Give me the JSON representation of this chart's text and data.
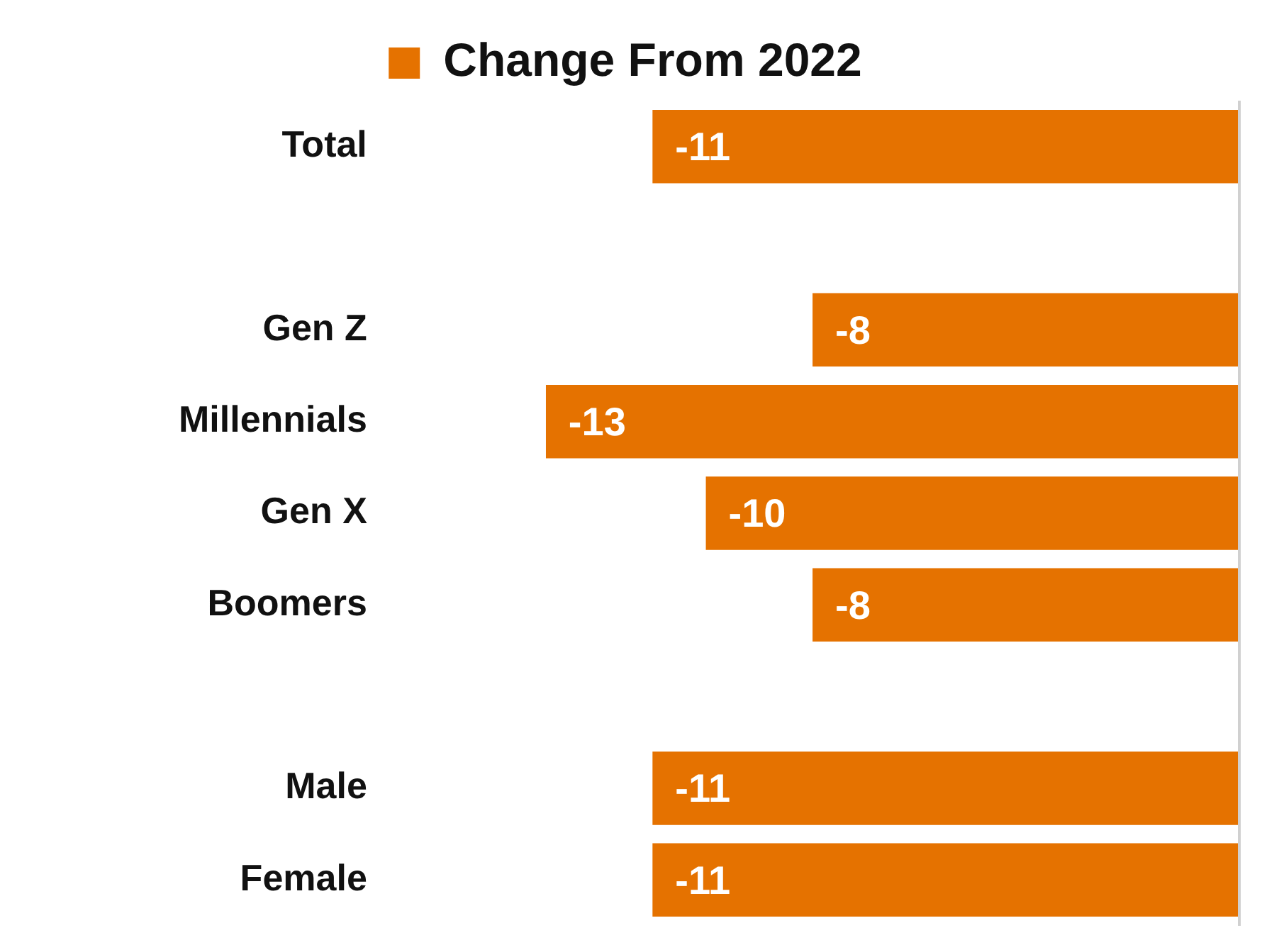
{
  "chart_data": {
    "type": "bar",
    "orientation": "horizontal",
    "xlim": [
      -13,
      0
    ],
    "tick_labels": "y",
    "data_labels": true,
    "legend": "top",
    "categories": [
      "Total",
      null,
      "Gen Z",
      "Millennials",
      "Gen X",
      "Boomers",
      null,
      "Male",
      "Female"
    ],
    "series": [
      {
        "name": "Change From 2022",
        "color": "#e57200",
        "values": [
          -11,
          null,
          -8,
          -13,
          -10,
          -8,
          null,
          -11,
          -11
        ]
      }
    ]
  }
}
